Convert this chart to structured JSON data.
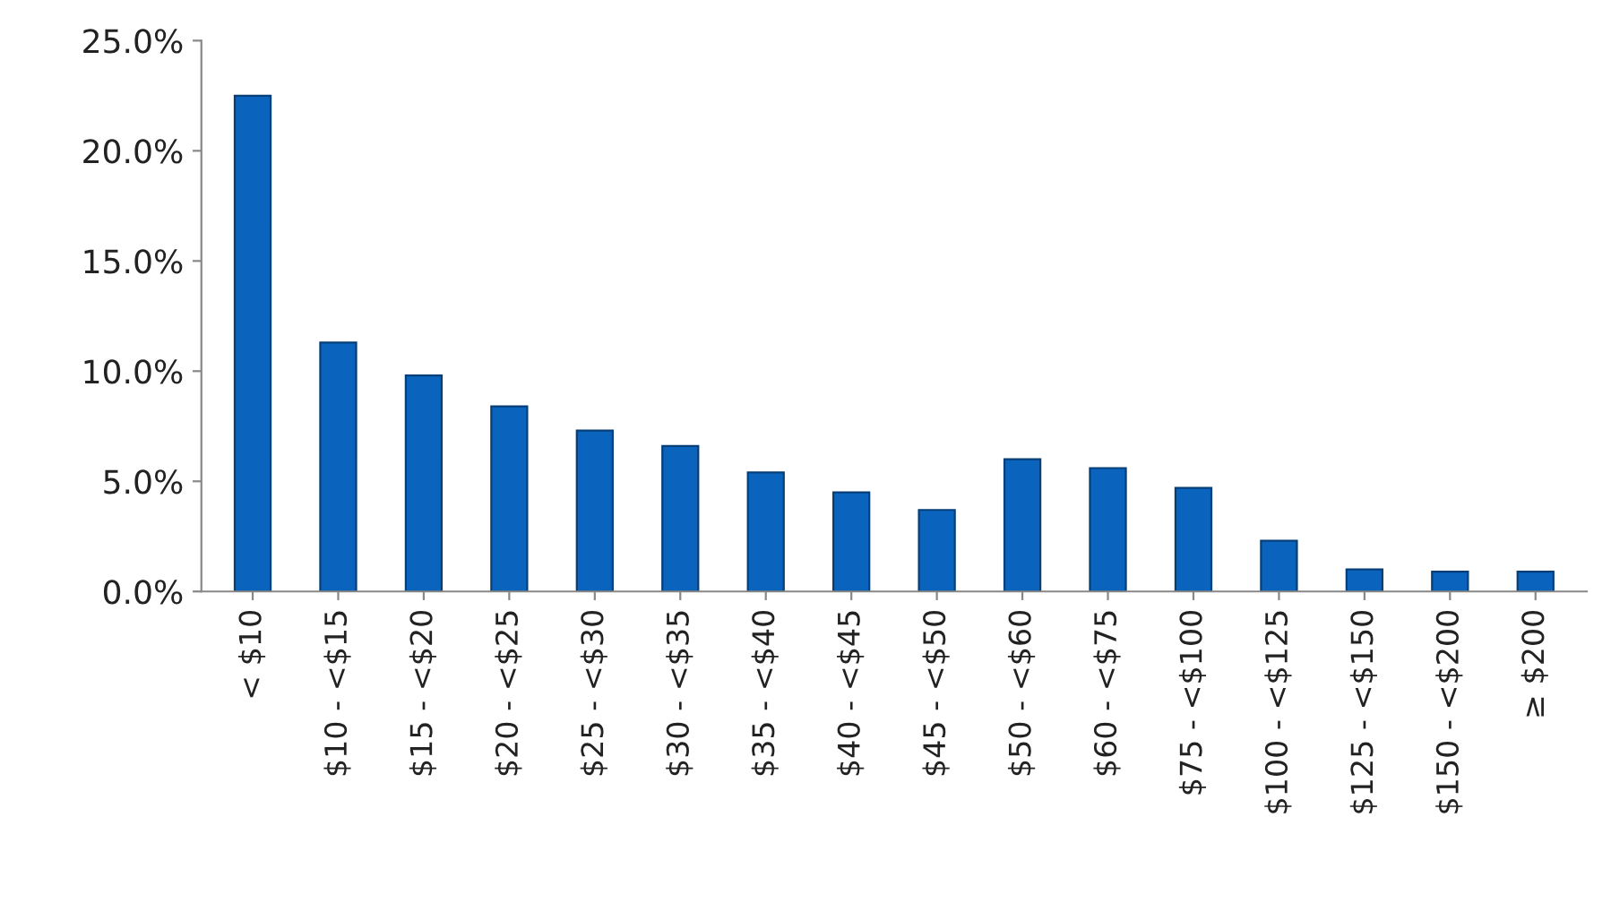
{
  "chart_data": {
    "type": "bar",
    "categories": [
      "< $10",
      "$10 - <$15",
      "$15 - <$20",
      "$20 - <$25",
      "$25 - <$30",
      "$30 - <$35",
      "$35 - <$40",
      "$40 - <$45",
      "$45 - <$50",
      "$50 - <$60",
      "$60 - <$75",
      "$75 - <$100",
      "$100 - <$125",
      "$125 - <$150",
      "$150 - <$200",
      "≥ $200"
    ],
    "values": [
      22.5,
      11.3,
      9.8,
      8.4,
      7.3,
      6.6,
      5.4,
      4.5,
      3.7,
      6.0,
      5.6,
      4.7,
      2.3,
      1.0,
      0.9,
      0.9
    ],
    "color": "#0a64be",
    "ylim": [
      0,
      25
    ],
    "yticks": [
      {
        "value": 0,
        "label": "0.0%"
      },
      {
        "value": 5,
        "label": "5.0%"
      },
      {
        "value": 10,
        "label": "10.0%"
      },
      {
        "value": 15,
        "label": "15.0%"
      },
      {
        "value": 20,
        "label": "20.0%"
      },
      {
        "value": 25,
        "label": "25.0%"
      }
    ],
    "grid": false,
    "legend": false
  }
}
